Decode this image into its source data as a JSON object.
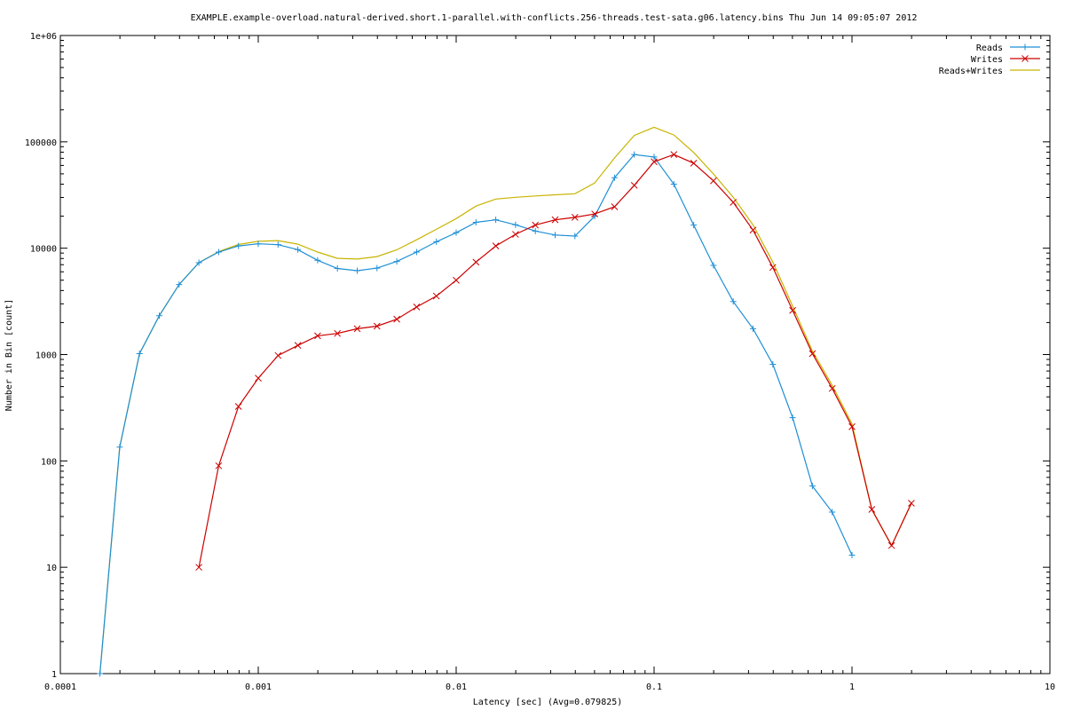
{
  "chart_data": {
    "type": "line",
    "title": "EXAMPLE.example-overload.natural-derived.short.1-parallel.with-conflicts.256-threads.test-sata.g06.latency.bins Thu Jun 14 09:05:07 2012",
    "xlabel": "Latency [sec]  (Avg=0.079825)",
    "ylabel": "Number in Bin [count]",
    "x_scale": "log",
    "y_scale": "log",
    "xlim": [
      0.0001,
      10
    ],
    "ylim": [
      1,
      1000000
    ],
    "x_ticks": [
      {
        "value": 0.0001,
        "label": "0.0001"
      },
      {
        "value": 0.001,
        "label": "0.001"
      },
      {
        "value": 0.01,
        "label": "0.01"
      },
      {
        "value": 0.1,
        "label": "0.1"
      },
      {
        "value": 1,
        "label": "1"
      },
      {
        "value": 10,
        "label": "10"
      }
    ],
    "y_ticks": [
      {
        "value": 1,
        "label": "1"
      },
      {
        "value": 10,
        "label": "10"
      },
      {
        "value": 100,
        "label": "100"
      },
      {
        "value": 1000,
        "label": "1000"
      },
      {
        "value": 10000,
        "label": "10000"
      },
      {
        "value": 100000,
        "label": "100000"
      },
      {
        "value": 1000000,
        "label": "1e+06"
      }
    ],
    "legend_position": "top-right",
    "grid": false,
    "series": [
      {
        "name": "Reads",
        "color": "#1e8fd6",
        "marker": "plus",
        "points": [
          [
            0.0001585,
            1
          ],
          [
            0.0001995,
            135
          ],
          [
            0.0002512,
            1020
          ],
          [
            0.0003162,
            2320
          ],
          [
            0.0003981,
            4550
          ],
          [
            0.0005012,
            7300
          ],
          [
            0.000631,
            9200
          ],
          [
            0.0007943,
            10500
          ],
          [
            0.001,
            11000
          ],
          [
            0.001259,
            10800
          ],
          [
            0.001585,
            9700
          ],
          [
            0.001995,
            7700
          ],
          [
            0.002512,
            6450
          ],
          [
            0.003162,
            6150
          ],
          [
            0.003981,
            6500
          ],
          [
            0.005012,
            7500
          ],
          [
            0.00631,
            9200
          ],
          [
            0.007943,
            11500
          ],
          [
            0.01,
            14000
          ],
          [
            0.01259,
            17500
          ],
          [
            0.01585,
            18500
          ],
          [
            0.01995,
            16600
          ],
          [
            0.02512,
            14500
          ],
          [
            0.03162,
            13300
          ],
          [
            0.03981,
            13000
          ],
          [
            0.05012,
            20000
          ],
          [
            0.0631,
            46000
          ],
          [
            0.07943,
            76000
          ],
          [
            0.1,
            72000
          ],
          [
            0.1259,
            40000
          ],
          [
            0.1585,
            16500
          ],
          [
            0.1995,
            6900
          ],
          [
            0.2512,
            3150
          ],
          [
            0.3162,
            1750
          ],
          [
            0.3981,
            810
          ],
          [
            0.5012,
            255
          ],
          [
            0.631,
            58
          ],
          [
            0.7943,
            33
          ],
          [
            1,
            13
          ]
        ]
      },
      {
        "name": "Writes",
        "color": "#cc0000",
        "marker": "cross",
        "points": [
          [
            0.0005012,
            10
          ],
          [
            0.000631,
            90
          ],
          [
            0.0007943,
            325
          ],
          [
            0.001,
            600
          ],
          [
            0.001259,
            980
          ],
          [
            0.001585,
            1220
          ],
          [
            0.001995,
            1500
          ],
          [
            0.002512,
            1580
          ],
          [
            0.003162,
            1750
          ],
          [
            0.003981,
            1850
          ],
          [
            0.005012,
            2150
          ],
          [
            0.00631,
            2800
          ],
          [
            0.007943,
            3550
          ],
          [
            0.01,
            5000
          ],
          [
            0.01259,
            7400
          ],
          [
            0.01585,
            10500
          ],
          [
            0.01995,
            13500
          ],
          [
            0.02512,
            16500
          ],
          [
            0.03162,
            18500
          ],
          [
            0.03981,
            19500
          ],
          [
            0.05012,
            21000
          ],
          [
            0.0631,
            24500
          ],
          [
            0.07943,
            39000
          ],
          [
            0.1,
            65000
          ],
          [
            0.1259,
            76000
          ],
          [
            0.1585,
            63000
          ],
          [
            0.1995,
            43000
          ],
          [
            0.2512,
            27000
          ],
          [
            0.3162,
            14800
          ],
          [
            0.3981,
            6600
          ],
          [
            0.5012,
            2600
          ],
          [
            0.631,
            1020
          ],
          [
            0.7943,
            480
          ],
          [
            1,
            210
          ],
          [
            1.259,
            35
          ],
          [
            1.585,
            16
          ],
          [
            1.995,
            40
          ]
        ]
      },
      {
        "name": "Reads+Writes",
        "color": "#c8b400",
        "marker": "none",
        "points": [
          [
            0.0001585,
            1
          ],
          [
            0.0001995,
            135
          ],
          [
            0.0002512,
            1020
          ],
          [
            0.0003162,
            2320
          ],
          [
            0.0003981,
            4550
          ],
          [
            0.0005012,
            7310
          ],
          [
            0.000631,
            9290
          ],
          [
            0.0007943,
            10825
          ],
          [
            0.001,
            11600
          ],
          [
            0.001259,
            11780
          ],
          [
            0.001585,
            10920
          ],
          [
            0.001995,
            9200
          ],
          [
            0.002512,
            8030
          ],
          [
            0.003162,
            7900
          ],
          [
            0.003981,
            8350
          ],
          [
            0.005012,
            9650
          ],
          [
            0.00631,
            12000
          ],
          [
            0.007943,
            15050
          ],
          [
            0.01,
            19000
          ],
          [
            0.01259,
            24900
          ],
          [
            0.01585,
            29000
          ],
          [
            0.01995,
            30100
          ],
          [
            0.02512,
            31000
          ],
          [
            0.03162,
            31800
          ],
          [
            0.03981,
            32500
          ],
          [
            0.05012,
            41000
          ],
          [
            0.0631,
            70500
          ],
          [
            0.07943,
            115000
          ],
          [
            0.1,
            137000
          ],
          [
            0.1259,
            116000
          ],
          [
            0.1585,
            79500
          ],
          [
            0.1995,
            49900
          ],
          [
            0.2512,
            30150
          ],
          [
            0.3162,
            16550
          ],
          [
            0.3981,
            7410
          ],
          [
            0.5012,
            2855
          ],
          [
            0.631,
            1078
          ],
          [
            0.7943,
            513
          ],
          [
            1,
            223
          ],
          [
            1.259,
            35
          ],
          [
            1.585,
            16
          ],
          [
            1.995,
            40
          ]
        ]
      }
    ]
  }
}
